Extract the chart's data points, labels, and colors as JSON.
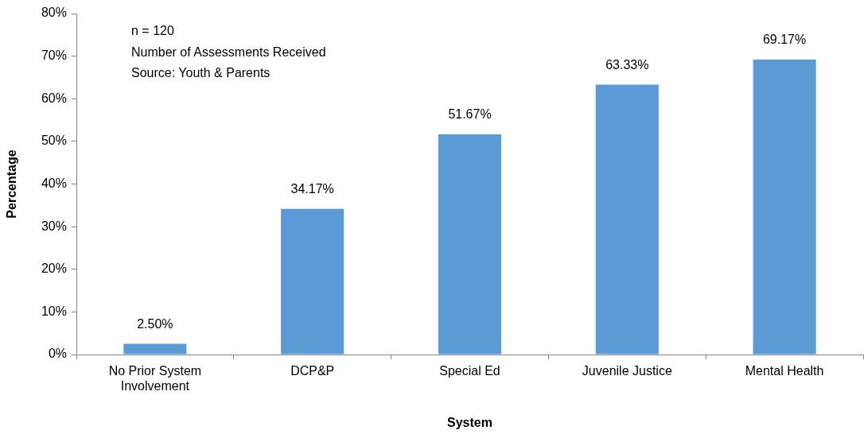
{
  "chart_data": {
    "type": "bar",
    "xlabel": "System",
    "ylabel": "Percentage",
    "categories": [
      "No Prior System Involvement",
      "DCP&P",
      "Special Ed",
      "Juvenile Justice",
      "Mental Health"
    ],
    "values": [
      2.5,
      34.17,
      51.67,
      63.33,
      69.17
    ],
    "value_labels": [
      "2.50%",
      "34.17%",
      "51.67%",
      "63.33%",
      "69.17%"
    ],
    "color": "#5b9bd5",
    "ylim": [
      0,
      80
    ],
    "yticks": [
      {
        "value": 0,
        "label": "0%"
      },
      {
        "value": 10,
        "label": "10%"
      },
      {
        "value": 20,
        "label": "20%"
      },
      {
        "value": 30,
        "label": "30%"
      },
      {
        "value": 40,
        "label": "40%"
      },
      {
        "value": 50,
        "label": "50%"
      },
      {
        "value": 60,
        "label": "60%"
      },
      {
        "value": 70,
        "label": "70%"
      },
      {
        "value": 80,
        "label": "80%"
      }
    ],
    "annotations": [
      "n = 120",
      "Number of Assessments Received",
      "Source: Youth & Parents"
    ]
  }
}
